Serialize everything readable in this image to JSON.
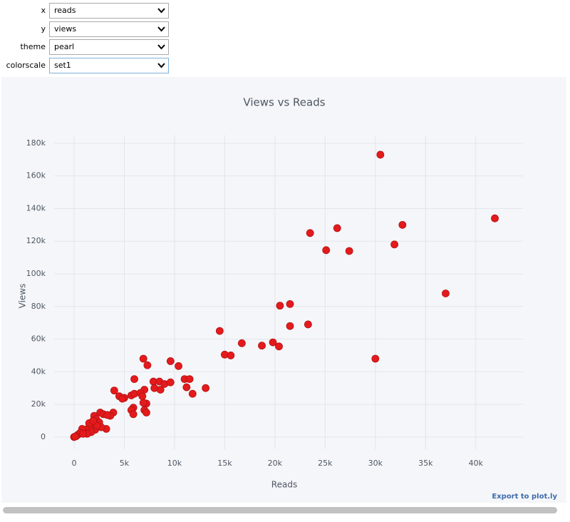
{
  "controls": [
    {
      "label": "x",
      "value": "reads"
    },
    {
      "label": "y",
      "value": "views"
    },
    {
      "label": "theme",
      "value": "pearl"
    },
    {
      "label": "colorscale",
      "value": "set1"
    }
  ],
  "export_link": "Export to plot.ly",
  "chart_data": {
    "type": "scatter",
    "title": "Views vs Reads",
    "x_label": "Reads",
    "y_label": "Views",
    "color": "#e41a1c",
    "grid": true,
    "xlim": [
      -2000,
      44700
    ],
    "ylim": [
      -7500,
      185000
    ],
    "xticks": [
      0,
      {
        "value": 5000,
        "label": "5k"
      },
      {
        "value": 10000,
        "label": "10k"
      },
      {
        "value": 15000,
        "label": "15k"
      },
      {
        "value": 20000,
        "label": "20k"
      },
      {
        "value": 25000,
        "label": "25k"
      },
      {
        "value": 30000,
        "label": "30k"
      },
      {
        "value": 35000,
        "label": "35k"
      },
      {
        "value": 40000,
        "label": "40k"
      }
    ],
    "yticks": [
      0,
      {
        "value": 20000,
        "label": "20k"
      },
      {
        "value": 40000,
        "label": "40k"
      },
      {
        "value": 60000,
        "label": "60k"
      },
      {
        "value": 80000,
        "label": "80k"
      },
      {
        "value": 100000,
        "label": "100k"
      },
      {
        "value": 120000,
        "label": "120k"
      },
      {
        "value": 140000,
        "label": "140k"
      },
      {
        "value": 160000,
        "label": "160k"
      },
      {
        "value": 180000,
        "label": "180k"
      }
    ],
    "x": [
      30500,
      41900,
      32700,
      26200,
      23500,
      31900,
      25100,
      27400,
      37000,
      21500,
      20500,
      23300,
      21500,
      14500,
      19800,
      16700,
      18700,
      20400,
      15000,
      15600,
      30000,
      6900,
      9600,
      7300,
      10400,
      11000,
      11500,
      11200,
      13100,
      6000,
      7900,
      8500,
      9000,
      9600,
      8000,
      8600,
      7000,
      11800,
      4000,
      4500,
      5000,
      5700,
      6000,
      6600,
      6800,
      7200,
      6900,
      4800,
      5900,
      5700,
      7000,
      7200,
      5900,
      3900,
      3600,
      3200,
      2600,
      2900,
      2000,
      2200,
      2500,
      2700,
      2100,
      1800,
      1500,
      1200,
      1000,
      800,
      600,
      400,
      200,
      0,
      100,
      1500,
      1700,
      1300,
      2300,
      1900,
      900,
      3300
    ],
    "values": [
      173000,
      134000,
      130000,
      128000,
      125000,
      118000,
      114500,
      114000,
      88000,
      81500,
      80500,
      69000,
      68000,
      65000,
      58000,
      57500,
      56000,
      55500,
      50500,
      50000,
      48000,
      48000,
      46500,
      44000,
      43500,
      35500,
      35500,
      30500,
      30000,
      35500,
      34000,
      34000,
      32500,
      33500,
      30000,
      29000,
      29000,
      26500,
      28500,
      25000,
      24000,
      25500,
      26500,
      27000,
      25000,
      20500,
      21000,
      23500,
      18000,
      16500,
      16500,
      15000,
      14000,
      15000,
      13000,
      5000,
      15000,
      14000,
      13000,
      11000,
      9000,
      6000,
      4500,
      7000,
      6000,
      4500,
      3000,
      5000,
      2500,
      1500,
      500,
      0,
      300,
      8500,
      3000,
      2000,
      7000,
      10000,
      2000,
      13500
    ]
  }
}
